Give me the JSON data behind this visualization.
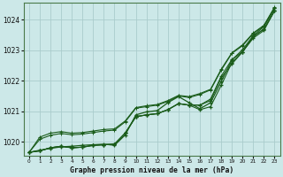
{
  "title": "Graphe pression niveau de la mer (hPa)",
  "bg_color": "#cce8e8",
  "grid_color": "#aacccc",
  "line_color": "#1a5c1a",
  "xlim": [
    -0.5,
    23.5
  ],
  "ylim": [
    1019.55,
    1024.55
  ],
  "yticks": [
    1020,
    1021,
    1022,
    1023,
    1024
  ],
  "xticks": [
    0,
    1,
    2,
    3,
    4,
    5,
    6,
    7,
    8,
    9,
    10,
    11,
    12,
    13,
    14,
    15,
    16,
    17,
    18,
    19,
    20,
    21,
    22,
    23
  ],
  "series": [
    [
      1019.65,
      1019.7,
      1019.8,
      1019.85,
      1019.8,
      1019.82,
      1019.88,
      1019.9,
      1019.92,
      1020.28,
      1020.82,
      1020.88,
      1020.92,
      1021.05,
      1021.25,
      1021.2,
      1021.05,
      1021.15,
      1021.85,
      1022.6,
      1022.95,
      1023.4,
      1023.65,
      1024.3
    ],
    [
      1019.65,
      1019.7,
      1019.8,
      1019.85,
      1019.8,
      1019.82,
      1019.88,
      1019.9,
      1019.92,
      1020.28,
      1020.82,
      1020.88,
      1020.92,
      1021.05,
      1021.25,
      1021.2,
      1021.2,
      1021.35,
      1022.1,
      1022.55,
      1022.95,
      1023.45,
      1023.7,
      1024.3
    ],
    [
      1019.65,
      1019.7,
      1019.8,
      1019.85,
      1019.8,
      1019.82,
      1019.88,
      1019.9,
      1019.92,
      1020.28,
      1020.82,
      1020.88,
      1020.92,
      1021.05,
      1021.25,
      1021.2,
      1021.2,
      1021.4,
      1022.15,
      1022.7,
      1022.95,
      1023.45,
      1023.7,
      1024.3
    ]
  ],
  "main_series": [
    1019.65,
    1019.72,
    1019.78,
    1019.83,
    1019.85,
    1019.88,
    1019.9,
    1019.92,
    1019.88,
    1020.22,
    1020.88,
    1020.98,
    1021.02,
    1021.28,
    1021.48,
    1021.28,
    1021.08,
    1021.28,
    1021.98,
    1022.68,
    1023.02,
    1023.48,
    1023.78,
    1024.38
  ],
  "straight_line1": [
    1019.65,
    1020.08,
    1020.21,
    1020.27,
    1020.23,
    1020.25,
    1020.3,
    1020.35,
    1020.38,
    1020.65,
    1021.1,
    1021.15,
    1021.2,
    1021.32,
    1021.5,
    1021.45,
    1021.55,
    1021.7,
    1022.35,
    1022.9,
    1023.15,
    1023.55,
    1023.8,
    1024.4
  ],
  "straight_line2": [
    1019.65,
    1020.15,
    1020.28,
    1020.33,
    1020.28,
    1020.3,
    1020.35,
    1020.4,
    1020.42,
    1020.68,
    1021.12,
    1021.18,
    1021.22,
    1021.35,
    1021.52,
    1021.48,
    1021.58,
    1021.72,
    1022.38,
    1022.92,
    1023.18,
    1023.57,
    1023.82,
    1024.42
  ]
}
